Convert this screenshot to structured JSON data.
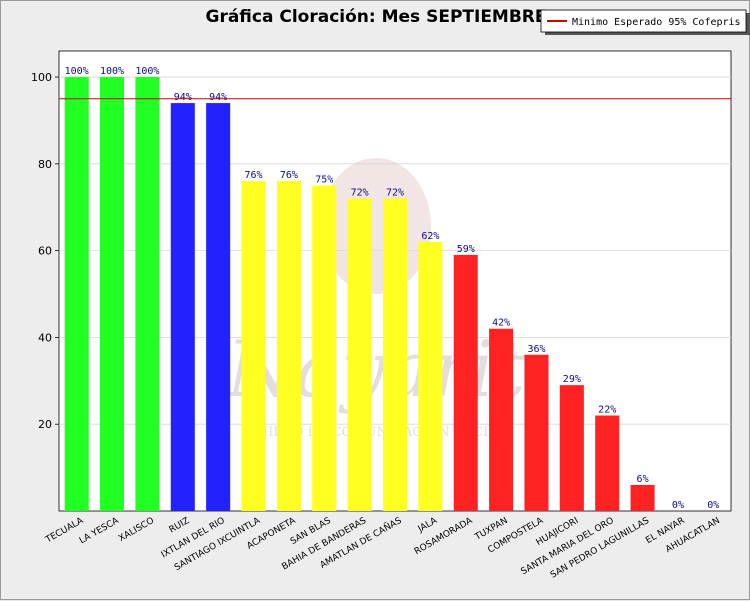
{
  "chart_data": {
    "type": "bar",
    "title": "Gráfica Cloración: Mes SEPTIEMBRE",
    "xlabel": "",
    "ylabel": "",
    "ylim": [
      0,
      106
    ],
    "yticks": [
      20,
      40,
      60,
      80,
      100
    ],
    "grid": true,
    "categories": [
      "TECUALA",
      "LA YESCA",
      "XALISCO",
      "RUIZ",
      "IXTLAN DEL RIO",
      "SANTIAGO IXCUINTLA",
      "ACAPONETA",
      "SAN BLAS",
      "BAHIA DE BANDERAS",
      "AMATLAN DE CAÑAS",
      "JALA",
      "ROSAMORADA",
      "TUXPAN",
      "COMPOSTELA",
      "HUAJICORI",
      "SANTA MARIA DEL ORO",
      "SAN PEDRO LAGUNILLAS",
      "EL NAYAR",
      "AHUACATLAN"
    ],
    "values": [
      100,
      100,
      100,
      94,
      94,
      76,
      76,
      75,
      72,
      72,
      62,
      59,
      42,
      36,
      29,
      22,
      6,
      0,
      0
    ],
    "data_labels": [
      "100%",
      "100%",
      "100%",
      "94%",
      "94%",
      "76%",
      "76%",
      "75%",
      "72%",
      "72%",
      "62%",
      "59%",
      "42%",
      "36%",
      "29%",
      "22%",
      "6%",
      "0%",
      "0%"
    ],
    "bar_colors": [
      "#22ff22",
      "#22ff22",
      "#22ff22",
      "#2222ff",
      "#2222ff",
      "#ffff22",
      "#ffff22",
      "#ffff22",
      "#ffff22",
      "#ffff22",
      "#ffff22",
      "#ff2222",
      "#ff2222",
      "#ff2222",
      "#ff2222",
      "#ff2222",
      "#ff2222",
      "#ff2222",
      "#ff2222"
    ],
    "reference_line": {
      "value": 95,
      "color": "#cc0000",
      "label": "Minimo Esperado 95% Cofepris"
    },
    "legend": {
      "position": "top-right",
      "entries": [
        "Minimo Esperado 95% Cofepris"
      ]
    }
  },
  "watermark": {
    "text_large": "Nayarit",
    "text_small": "UNIDAD DE COMUNICACION SOCIAL"
  }
}
